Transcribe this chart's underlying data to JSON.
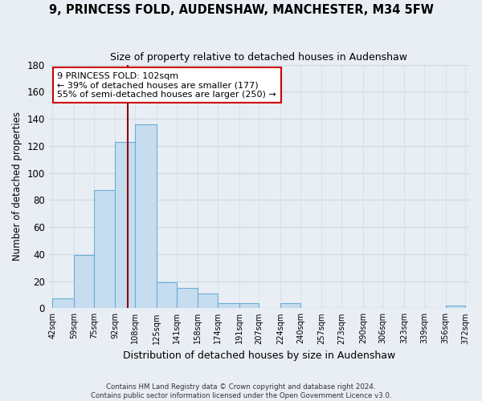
{
  "title": "9, PRINCESS FOLD, AUDENSHAW, MANCHESTER, M34 5FW",
  "subtitle": "Size of property relative to detached houses in Audenshaw",
  "xlabel": "Distribution of detached houses by size in Audenshaw",
  "ylabel": "Number of detached properties",
  "bar_values_full": [
    7,
    39,
    87,
    123,
    136,
    19,
    15,
    11,
    4,
    4,
    0,
    4,
    0,
    0,
    0,
    0,
    0,
    0,
    0,
    2
  ],
  "bar_labels": [
    "42sqm",
    "59sqm",
    "75sqm",
    "92sqm",
    "108sqm",
    "125sqm",
    "141sqm",
    "158sqm",
    "174sqm",
    "191sqm",
    "207sqm",
    "224sqm",
    "240sqm",
    "257sqm",
    "273sqm",
    "290sqm",
    "306sqm",
    "323sqm",
    "339sqm",
    "356sqm",
    "372sqm"
  ],
  "bin_edges": [
    42,
    59,
    75,
    92,
    108,
    125,
    141,
    158,
    174,
    191,
    207,
    224,
    240,
    257,
    273,
    290,
    306,
    323,
    339,
    356,
    372
  ],
  "bar_color": "#c5ddef",
  "bar_edge_color": "#6aaed6",
  "vline_x": 102,
  "vline_color": "#8b0000",
  "annotation_text": "9 PRINCESS FOLD: 102sqm\n← 39% of detached houses are smaller (177)\n55% of semi-detached houses are larger (250) →",
  "annotation_box_color": "white",
  "annotation_box_edgecolor": "#cc0000",
  "ylim": [
    0,
    180
  ],
  "yticks": [
    0,
    20,
    40,
    60,
    80,
    100,
    120,
    140,
    160,
    180
  ],
  "footer_text": "Contains HM Land Registry data © Crown copyright and database right 2024.\nContains public sector information licensed under the Open Government Licence v3.0.",
  "background_color": "#e8eef4",
  "grid_color": "#d0dce8"
}
